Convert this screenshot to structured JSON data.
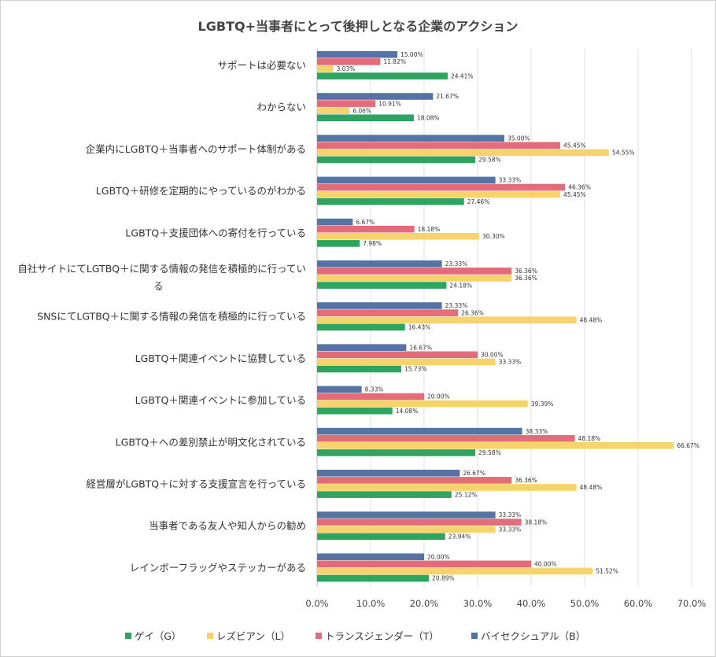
{
  "chart_data": {
    "type": "bar",
    "orientation": "horizontal",
    "title": "LGBTQ+当事者にとって後押しとなる企業のアクション",
    "categories": [
      "サポートは必要ない",
      "わからない",
      "企業内にLGBTQ＋当事者へのサポート体制がある",
      "LGBTQ＋研修を定期的にやっているのがわかる",
      "LGBTQ＋支援団体への寄付を行っている",
      "自社サイトにてLGTBQ＋に関する情報の発信を積極的に行ってい|る",
      "SNSにてLGTBQ＋に関する情報の発信を積極的に行っている",
      "LGBTQ＋関連イベントに協賛している",
      "LGBTQ＋関連イベントに参加している",
      "LGBTQ＋への差別禁止が明文化されている",
      "経営層がLGBTQ＋に対する支援宣言を行っている",
      "当事者である友人や知人からの勧め",
      "レインボーフラッグやステッカーがある"
    ],
    "series": [
      {
        "name": "バイセクシュアル（B）",
        "color": "#5674A3",
        "values": [
          15.0,
          21.67,
          35.0,
          33.33,
          6.67,
          23.33,
          23.33,
          16.67,
          8.33,
          38.33,
          26.67,
          33.33,
          20.0
        ]
      },
      {
        "name": "トランスジェンダー（T）",
        "color": "#E46C7A",
        "values": [
          11.82,
          10.91,
          45.45,
          46.36,
          18.18,
          36.36,
          26.36,
          30.0,
          20.0,
          48.18,
          36.36,
          38.18,
          40.0
        ]
      },
      {
        "name": "レズビアン（L）",
        "color": "#F7D46B",
        "values": [
          3.03,
          6.06,
          54.55,
          45.45,
          30.3,
          36.36,
          48.48,
          33.33,
          39.39,
          66.67,
          48.48,
          33.33,
          51.52
        ]
      },
      {
        "name": "ゲイ（G）",
        "color": "#2EA460",
        "values": [
          24.41,
          18.08,
          29.58,
          27.46,
          7.98,
          24.18,
          16.43,
          15.73,
          14.08,
          29.58,
          25.12,
          23.94,
          20.89
        ]
      }
    ],
    "legend_order": [
      "ゲイ（G）",
      "レズビアン（L）",
      "トランスジェンダー（T）",
      "バイセクシュアル（B）"
    ],
    "xlim": [
      0,
      70
    ],
    "xticks": [
      "0.0%",
      "10.0%",
      "20.0%",
      "30.0%",
      "40.0%",
      "50.0%",
      "60.0%",
      "70.0%"
    ],
    "grid": true,
    "legend_position": "bottom"
  }
}
